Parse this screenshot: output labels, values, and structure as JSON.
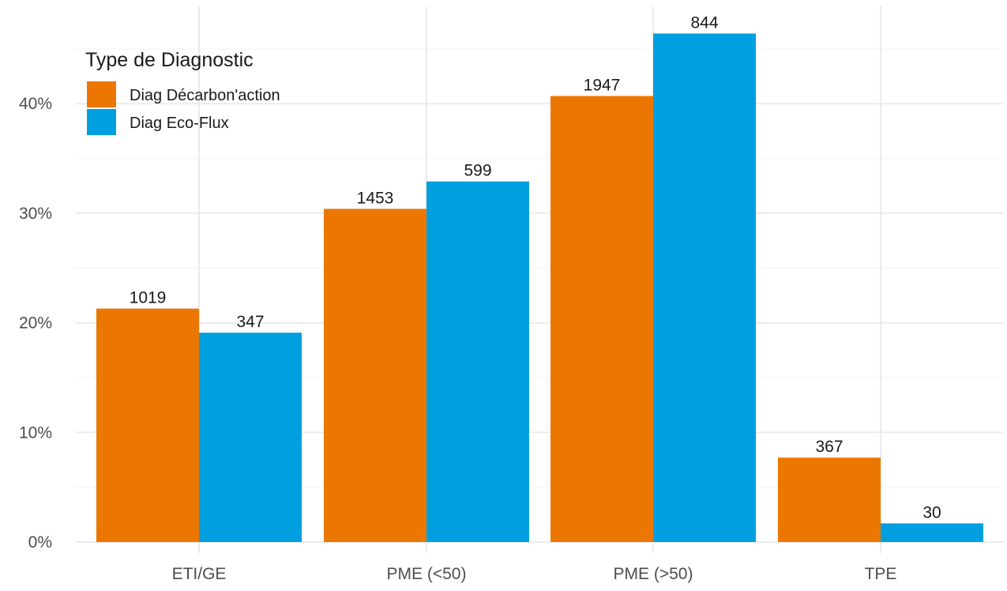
{
  "chart_data": {
    "type": "bar",
    "title": "",
    "xlabel": "",
    "ylabel": "",
    "categories": [
      "ETI/GE",
      "PME (<50)",
      "PME (>50)",
      "TPE"
    ],
    "series": [
      {
        "name": "Diag Décarbon'action",
        "color": "#EC7700",
        "values": [
          21.3,
          30.4,
          40.7,
          7.7
        ],
        "labels": [
          "1019",
          "1453",
          "1947",
          "367"
        ]
      },
      {
        "name": "Diag Eco-Flux",
        "color": "#00A0E0",
        "values": [
          19.1,
          32.9,
          46.4,
          1.7
        ],
        "labels": [
          "347",
          "599",
          "844",
          "30"
        ]
      }
    ],
    "ylim": [
      0,
      47
    ],
    "yticks": [
      0,
      10,
      20,
      30,
      40
    ],
    "ytick_labels": [
      "0%",
      "10%",
      "20%",
      "30%",
      "40%"
    ],
    "grid": true,
    "legend": {
      "title": "Type de Diagnostic",
      "placement": "top-left"
    }
  }
}
